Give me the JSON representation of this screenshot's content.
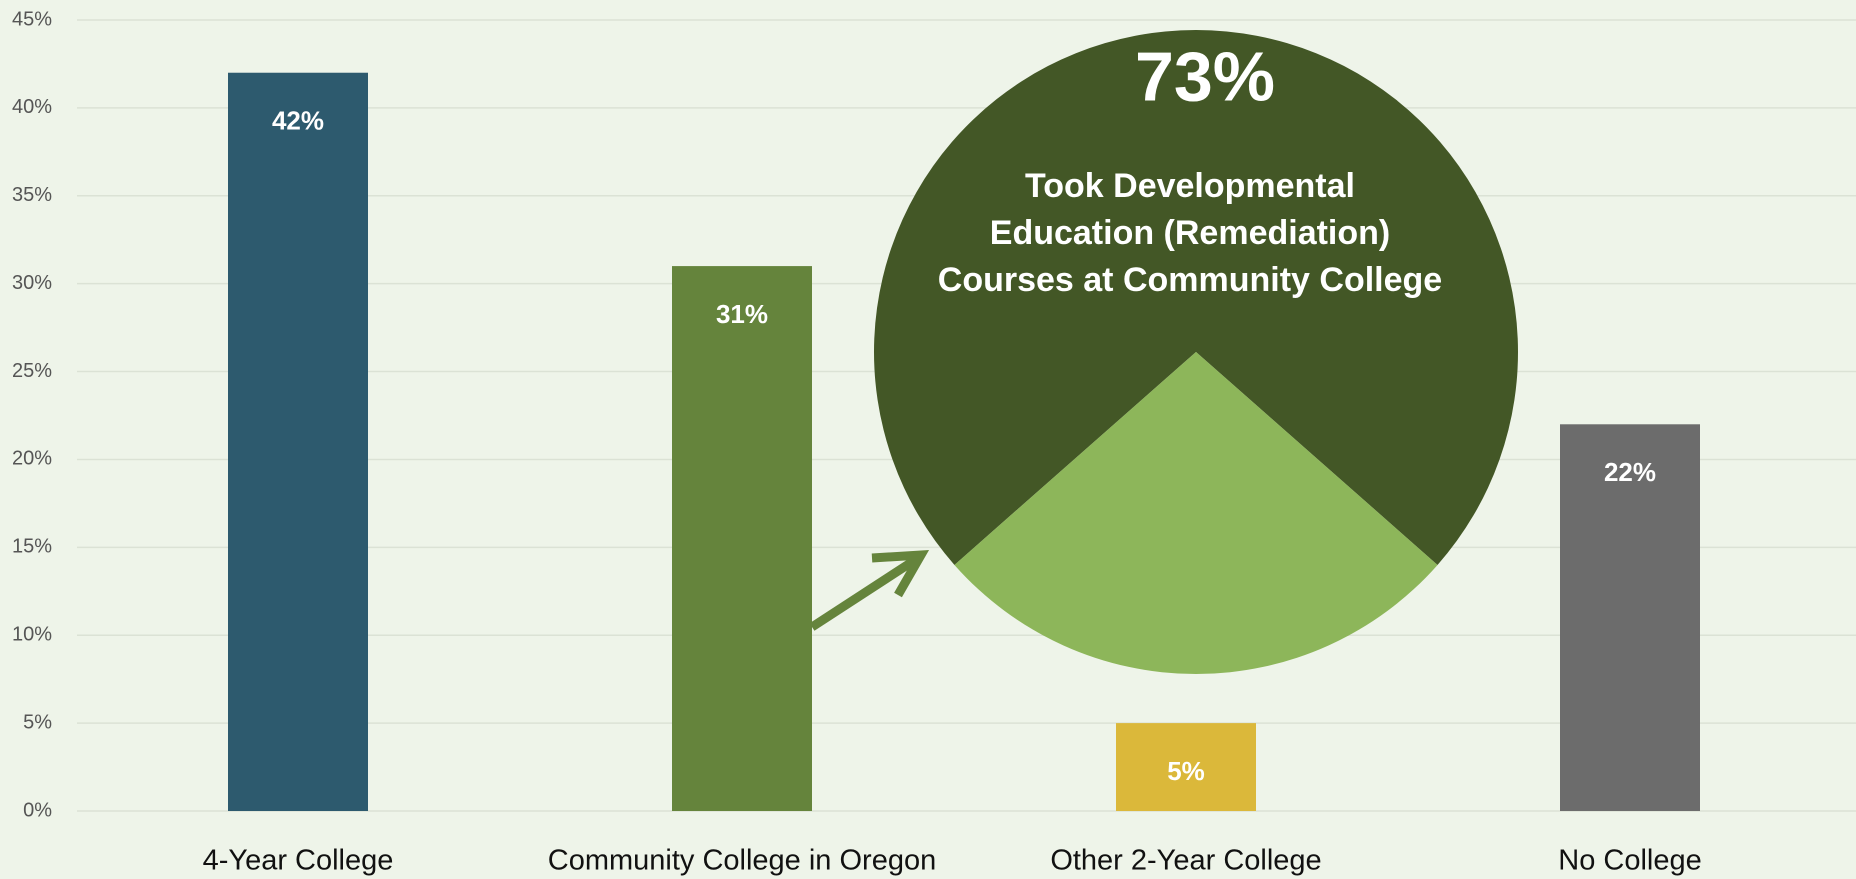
{
  "chart_data": [
    {
      "type": "bar",
      "categories": [
        "4-Year College",
        "Community College in Oregon",
        "Other 2-Year College",
        "No College"
      ],
      "values": [
        42,
        31,
        5,
        22
      ],
      "value_labels": [
        "42%",
        "31%",
        "5%",
        "22%"
      ],
      "colors": [
        "#2d5a6e",
        "#65843c",
        "#dbb83a",
        "#6c6c6c"
      ],
      "ylim": [
        0,
        45
      ],
      "yticks": [
        {
          "value": 0,
          "label": "0%"
        },
        {
          "value": 5,
          "label": "5%"
        },
        {
          "value": 10,
          "label": "10%"
        },
        {
          "value": 15,
          "label": "15%"
        },
        {
          "value": 20,
          "label": "20%"
        },
        {
          "value": 25,
          "label": "25%"
        },
        {
          "value": 30,
          "label": "30%"
        },
        {
          "value": 35,
          "label": "35%"
        },
        {
          "value": 40,
          "label": "40%"
        },
        {
          "value": 45,
          "label": "45%"
        }
      ],
      "grid": true
    },
    {
      "type": "pie",
      "values": [
        73,
        27
      ],
      "value_labels": [
        "73%",
        null
      ],
      "colors": [
        "#435726",
        "#8db65a"
      ],
      "annotation": [
        "Took Developmental",
        "Education (Remediation)",
        "Courses at Community College"
      ]
    }
  ]
}
